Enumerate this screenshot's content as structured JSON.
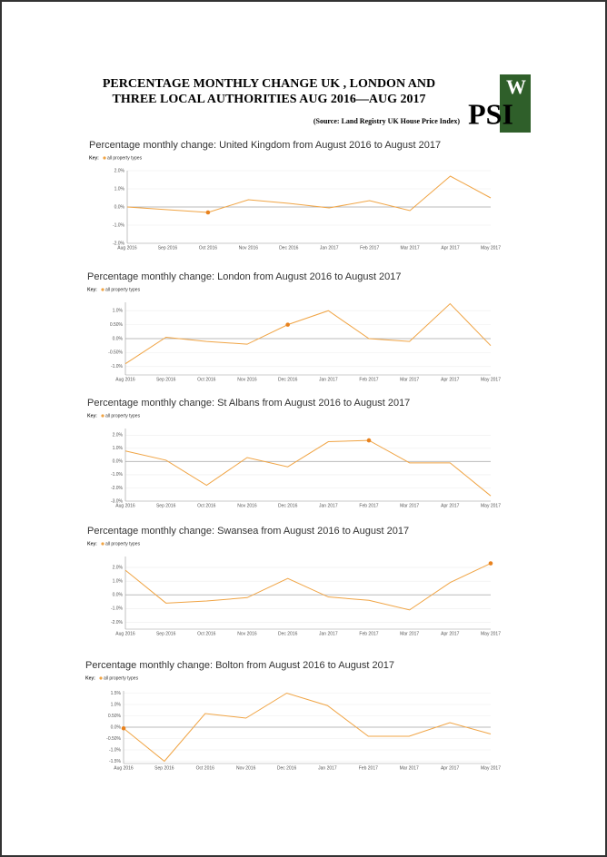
{
  "header": {
    "title_line1": "PERCENTAGE MONTHLY CHANGE  UK , LONDON AND",
    "title_line2": "THREE LOCAL AUTHORITIES AUG 2016—AUG 2017",
    "source": "(Source: Land Registry UK House Price Index)",
    "logo_main": "PSI",
    "logo_corner": "W"
  },
  "chart_data": [
    {
      "type": "line",
      "title": "Percentage monthly change: United Kingdom from August 2016 to August 2017",
      "key_title": "Key:",
      "categories": [
        "Aug 2016",
        "Sep 2016",
        "Oct 2016",
        "Nov 2016",
        "Dec 2016",
        "Jan 2017",
        "Feb 2017",
        "Mar 2017",
        "Apr 2017",
        "May 2017"
      ],
      "series": [
        {
          "name": "all property types",
          "color": "#f0a444",
          "values": [
            0.0,
            -0.15,
            -0.3,
            0.4,
            0.2,
            -0.05,
            0.35,
            -0.2,
            1.7,
            0.5
          ]
        }
      ],
      "marker_index": 2,
      "ylim": [
        -2,
        2
      ],
      "yticks": [
        {
          "value": 2,
          "label": "2.0%"
        },
        {
          "value": 1,
          "label": "1.0%"
        },
        {
          "value": 0,
          "label": "0.0%"
        },
        {
          "value": -1,
          "label": "-1.0%"
        },
        {
          "value": -2,
          "label": "-2.0%"
        }
      ],
      "grid": true
    },
    {
      "type": "line",
      "title": "Percentage monthly change: London from August 2016 to August 2017",
      "key_title": "Key:",
      "categories": [
        "Aug 2016",
        "Sep 2016",
        "Oct 2016",
        "Nov 2016",
        "Dec 2016",
        "Jan 2017",
        "Feb 2017",
        "Mar 2017",
        "Apr 2017",
        "May 2017"
      ],
      "series": [
        {
          "name": "all property types",
          "color": "#f0a444",
          "values": [
            -0.9,
            0.05,
            -0.1,
            -0.2,
            0.5,
            1.0,
            0.0,
            -0.1,
            1.25,
            -0.25
          ]
        }
      ],
      "marker_index": 4,
      "ylim": [
        -1.3,
        1.3
      ],
      "yticks": [
        {
          "value": 1,
          "label": "1.0%"
        },
        {
          "value": 0.5,
          "label": "0.50%"
        },
        {
          "value": 0,
          "label": "0.0%"
        },
        {
          "value": -0.5,
          "label": "-0.50%"
        },
        {
          "value": -1,
          "label": "-1.0%"
        }
      ],
      "grid": true
    },
    {
      "type": "line",
      "title": "Percentage monthly change: St Albans from August 2016 to August 2017",
      "key_title": "Key:",
      "categories": [
        "Aug 2016",
        "Sep 2016",
        "Oct 2016",
        "Nov 2016",
        "Dec 2016",
        "Jan 2017",
        "Feb 2017",
        "Mar 2017",
        "Apr 2017",
        "May 2017"
      ],
      "series": [
        {
          "name": "all property types",
          "color": "#f0a444",
          "values": [
            0.8,
            0.1,
            -1.8,
            0.3,
            -0.4,
            1.5,
            1.6,
            -0.1,
            -0.1,
            -2.6
          ]
        }
      ],
      "marker_index": 6,
      "ylim": [
        -3,
        2.5
      ],
      "yticks": [
        {
          "value": 2,
          "label": "2.0%"
        },
        {
          "value": 1,
          "label": "1.0%"
        },
        {
          "value": 0,
          "label": "0.0%"
        },
        {
          "value": -1,
          "label": "-1.0%"
        },
        {
          "value": -2,
          "label": "-2.0%"
        },
        {
          "value": -3,
          "label": "-3.0%"
        }
      ],
      "grid": true
    },
    {
      "type": "line",
      "title": "Percentage monthly change: Swansea from August 2016 to August 2017",
      "key_title": "Key:",
      "categories": [
        "Aug 2016",
        "Sep 2016",
        "Oct 2016",
        "Nov 2016",
        "Dec 2016",
        "Jan 2017",
        "Feb 2017",
        "Mar 2017",
        "Apr 2017",
        "May 2017"
      ],
      "series": [
        {
          "name": "all property types",
          "color": "#f0a444",
          "values": [
            1.8,
            -0.6,
            -0.45,
            -0.2,
            1.2,
            -0.15,
            -0.4,
            -1.1,
            0.9,
            2.3
          ]
        }
      ],
      "marker_index": 9,
      "ylim": [
        -2.5,
        2.8
      ],
      "yticks": [
        {
          "value": 2,
          "label": "2.0%"
        },
        {
          "value": 1,
          "label": "1.0%"
        },
        {
          "value": 0,
          "label": "0.0%"
        },
        {
          "value": -1,
          "label": "-1.0%"
        },
        {
          "value": -2,
          "label": "-2.0%"
        }
      ],
      "grid": true
    },
    {
      "type": "line",
      "title": "Percentage monthly change: Bolton from August 2016 to August 2017",
      "key_title": "Key:",
      "categories": [
        "Aug 2016",
        "Sep 2016",
        "Oct 2016",
        "Nov 2016",
        "Dec 2016",
        "Jan 2017",
        "Feb 2017",
        "Mar 2017",
        "Apr 2017",
        "May 2017"
      ],
      "series": [
        {
          "name": "all property types",
          "color": "#f0a444",
          "values": [
            -0.05,
            -1.5,
            0.6,
            0.4,
            1.5,
            0.95,
            -0.4,
            -0.4,
            0.2,
            -0.3
          ]
        }
      ],
      "marker_index": 0,
      "ylim": [
        -1.6,
        1.6
      ],
      "yticks": [
        {
          "value": 1.5,
          "label": "1.5%"
        },
        {
          "value": 1,
          "label": "1.0%"
        },
        {
          "value": 0.5,
          "label": "0.50%"
        },
        {
          "value": 0,
          "label": "0.0%"
        },
        {
          "value": -0.5,
          "label": "-0.50%"
        },
        {
          "value": -1,
          "label": "-1.0%"
        },
        {
          "value": -1.5,
          "label": "-1.5%"
        }
      ],
      "grid": true
    }
  ]
}
